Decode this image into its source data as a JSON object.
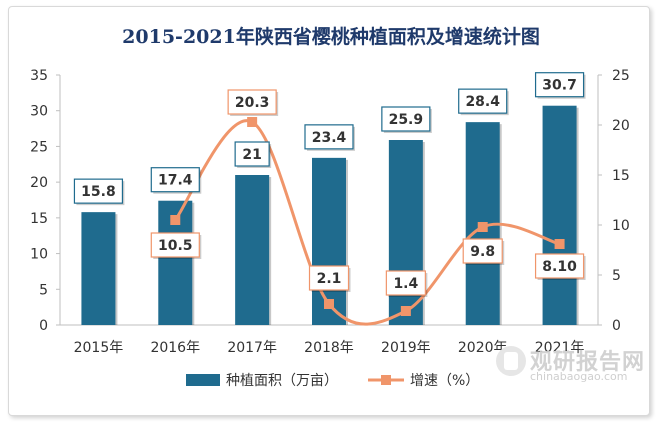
{
  "chart_data": {
    "type": "bar",
    "title": "2015-2021年陕西省樱桃种植面积及增速统计图",
    "categories": [
      "2015年",
      "2016年",
      "2017年",
      "2018年",
      "2019年",
      "2020年",
      "2021年"
    ],
    "series": [
      {
        "name": "种植面积（万亩）",
        "type": "bar",
        "axis": "left",
        "values": [
          15.8,
          17.4,
          21,
          23.4,
          25.9,
          28.4,
          30.7
        ],
        "labels": [
          "15.8",
          "17.4",
          "21",
          "23.4",
          "25.9",
          "28.4",
          "30.7"
        ],
        "color": "#1f6b8e"
      },
      {
        "name": "增速（%）",
        "type": "line",
        "axis": "right",
        "values": [
          null,
          10.5,
          20.3,
          2.1,
          1.4,
          9.8,
          8.1
        ],
        "labels": [
          null,
          "10.5",
          "20.3",
          "2.1",
          "1.4",
          "9.8",
          "8.10"
        ],
        "color": "#f0956a"
      }
    ],
    "y_left": {
      "min": 0,
      "max": 35,
      "ticks": [
        "0",
        "5",
        "10",
        "15",
        "20",
        "25",
        "30",
        "35"
      ]
    },
    "y_right": {
      "min": 0,
      "max": 25,
      "ticks": [
        "0",
        "5",
        "10",
        "15",
        "20",
        "25"
      ]
    },
    "grid": false,
    "legend_position": "bottom"
  },
  "watermark": {
    "text": "观研报告网",
    "sub": "chinabaogao.com"
  }
}
